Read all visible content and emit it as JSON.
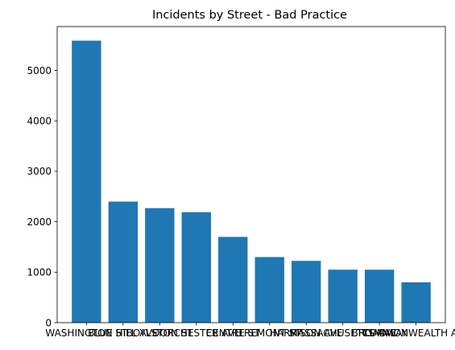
{
  "chart_data": {
    "type": "bar",
    "title": "Incidents by Street - Bad Practice",
    "xlabel": "",
    "ylabel": "",
    "categories": [
      "WASHINGTON ST",
      "BLUE HILL AVE",
      "BOYLSTON ST",
      "DORCHESTER AVE",
      "CENTRE ST",
      "TREMONT ST",
      "HARRISON AVE",
      "MASSACHUSETTS AVE",
      "BROADWAY",
      "COMMONWEALTH AVE"
    ],
    "values": [
      5590,
      2400,
      2270,
      2190,
      1700,
      1300,
      1225,
      1050,
      1050,
      800
    ],
    "ylim": [
      0,
      5870
    ],
    "yticks": [
      0,
      1000,
      2000,
      3000,
      4000,
      5000
    ],
    "grid": false,
    "bar_color": "#1f77b4"
  }
}
